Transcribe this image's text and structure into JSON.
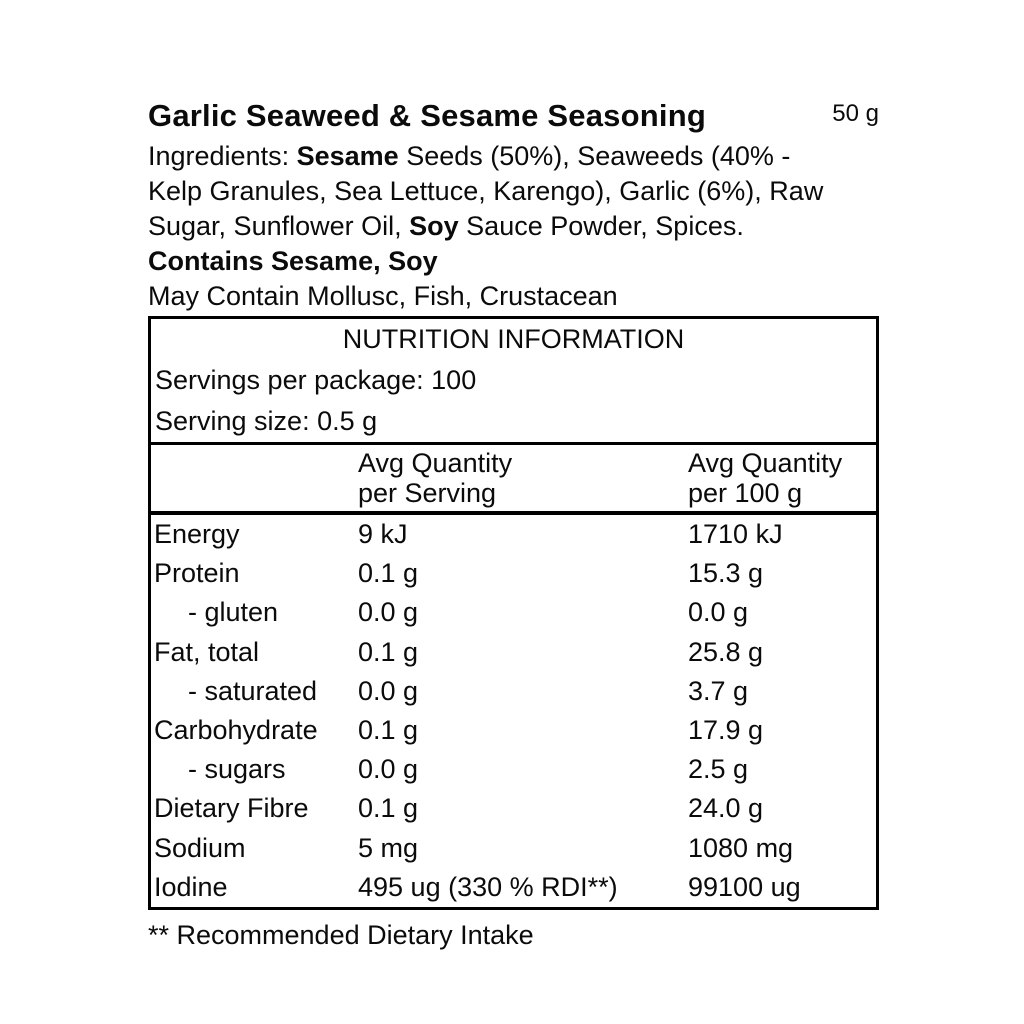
{
  "colors": {
    "background": "#ffffff",
    "text": "#0b0b0b",
    "table_border": "#000000"
  },
  "product": {
    "title": "Garlic Seaweed & Sesame Seasoning",
    "net_weight": "50 g"
  },
  "ingredients": {
    "line1_prefix": "Ingredients: ",
    "line1_bold": "Sesame",
    "line1_suffix": " Seeds (50%), Seaweeds (40% -",
    "line2": "Kelp Granules, Sea Lettuce, Karengo), Garlic (6%), Raw",
    "line3_prefix": "Sugar, Sunflower Oil, ",
    "line3_bold": "Soy",
    "line3_suffix": " Sauce Powder, Spices.",
    "contains": "Contains Sesame, Soy",
    "may_contain": "May Contain Mollusc, Fish, Crustacean"
  },
  "nutrition_table": {
    "title": "NUTRITION INFORMATION",
    "servings_per_package": "Servings per package: 100",
    "serving_size": "Serving size: 0.5 g",
    "col_headers": {
      "per_serving_line1": "Avg Quantity",
      "per_serving_line2": "per Serving",
      "per_100g_line1": "Avg Quantity",
      "per_100g_line2": "per 100 g"
    },
    "rows": [
      {
        "name": "Energy",
        "per_serving": "9 kJ",
        "per_100g": "1710 kJ"
      },
      {
        "name": "Protein",
        "per_serving": "0.1 g",
        "per_100g": "15.3 g"
      },
      {
        "name": "- gluten",
        "per_serving": "0.0 g",
        "per_100g": "0.0 g"
      },
      {
        "name": "Fat, total",
        "per_serving": "0.1 g",
        "per_100g": "25.8 g"
      },
      {
        "name": "- saturated",
        "per_serving": "0.0 g",
        "per_100g": "3.7 g"
      },
      {
        "name": "Carbohydrate",
        "per_serving": "0.1 g",
        "per_100g": "17.9 g"
      },
      {
        "name": "- sugars",
        "per_serving": "0.0 g",
        "per_100g": "2.5 g"
      },
      {
        "name": "Dietary Fibre",
        "per_serving": "0.1 g",
        "per_100g": "24.0 g"
      },
      {
        "name": "Sodium",
        "per_serving": "5 mg",
        "per_100g": "1080 mg"
      },
      {
        "name": "Iodine",
        "per_serving": "495 ug (330 % RDI**)",
        "per_100g": "99100 ug"
      }
    ]
  },
  "footnote": "** Recommended Dietary Intake"
}
